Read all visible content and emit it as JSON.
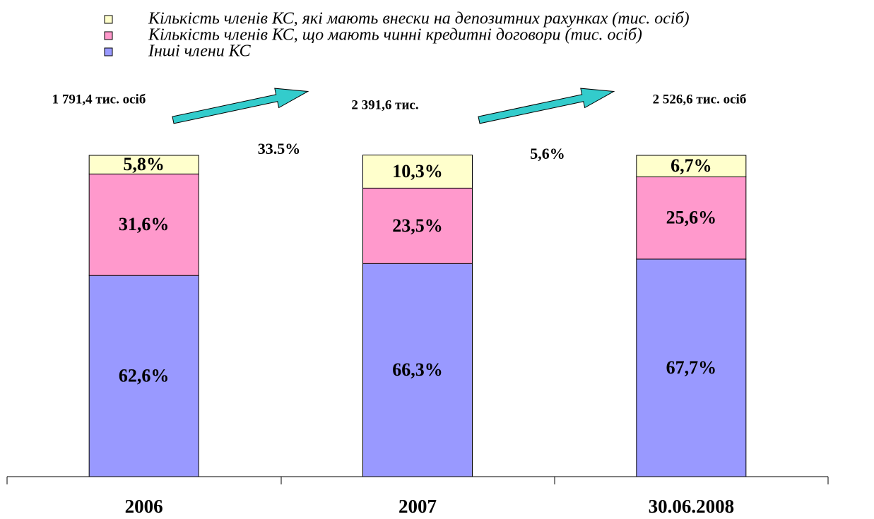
{
  "chart_data": {
    "type": "bar",
    "stacked": true,
    "categories": [
      "2006",
      "2007",
      "30.06.2008"
    ],
    "series": [
      {
        "name": "Кількість членів КС, які мають внески на депозитних рахунках (тис. осіб)",
        "color": "#ffffcc",
        "values": [
          5.8,
          10.3,
          6.7
        ],
        "value_labels": [
          "5,8%",
          "10,3%",
          "6,7%"
        ]
      },
      {
        "name": "Кількість членів КС, що мають чинні кредитні договори (тис. осіб)",
        "color": "#ff99cc",
        "values": [
          31.6,
          23.5,
          25.6
        ],
        "value_labels": [
          "31,6%",
          "23,5%",
          "25,6%"
        ]
      },
      {
        "name": "Інші члени КС",
        "color": "#9999ff",
        "values": [
          62.6,
          66.3,
          67.7
        ],
        "value_labels": [
          "62,6%",
          "66,3%",
          "67,7%"
        ]
      }
    ],
    "ylim": [
      0,
      100
    ],
    "annotations": [
      "1 791,4 тис. осіб",
      "2 391,6 тис.",
      "2 526,6 тис. осіб",
      "33.5%",
      "5,6%"
    ]
  }
}
